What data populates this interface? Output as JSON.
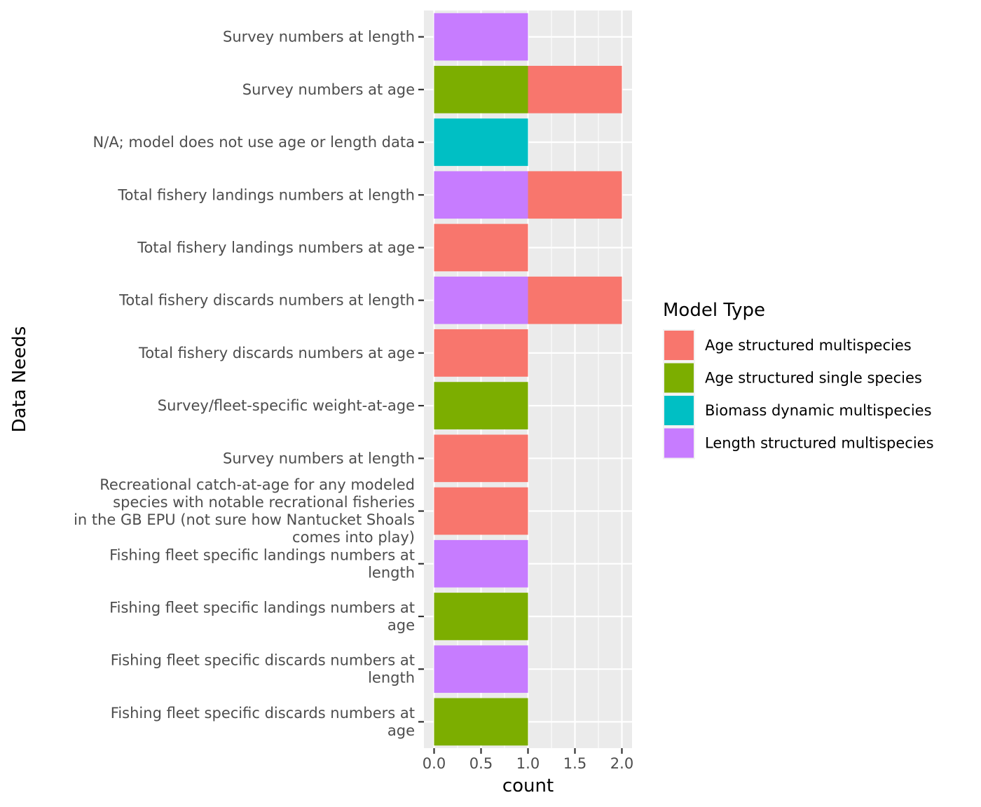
{
  "chart_data": {
    "type": "bar",
    "orientation": "horizontal",
    "stacked": true,
    "xlabel": "count",
    "ylabel": "Data Needs",
    "xlim": [
      0,
      2.1
    ],
    "xticks": [
      "0.0",
      "0.5",
      "1.0",
      "1.5",
      "2.0"
    ],
    "grid": true,
    "legend": {
      "title": "Model Type",
      "position": "right"
    },
    "series_info": [
      {
        "name": "Age structured multispecies",
        "color": "#F8766D"
      },
      {
        "name": "Age structured single species",
        "color": "#7CAE00"
      },
      {
        "name": "Biomass dynamic multispecies",
        "color": "#00BFC4"
      },
      {
        "name": "Length structured multispecies",
        "color": "#C77CFF"
      }
    ],
    "bars": [
      {
        "label": [
          "Survey numbers at length"
        ],
        "segments": [
          {
            "series": 3,
            "value": 1
          }
        ]
      },
      {
        "label": [
          "Survey numbers at age"
        ],
        "segments": [
          {
            "series": 1,
            "value": 1
          },
          {
            "series": 0,
            "value": 1
          }
        ]
      },
      {
        "label": [
          "N/A; model does not use age or length data"
        ],
        "segments": [
          {
            "series": 2,
            "value": 1
          }
        ]
      },
      {
        "label": [
          "Total fishery landings numbers at length"
        ],
        "segments": [
          {
            "series": 3,
            "value": 1
          },
          {
            "series": 0,
            "value": 1
          }
        ]
      },
      {
        "label": [
          "Total fishery landings numbers at age"
        ],
        "segments": [
          {
            "series": 0,
            "value": 1
          }
        ]
      },
      {
        "label": [
          "Total fishery discards numbers at length"
        ],
        "segments": [
          {
            "series": 3,
            "value": 1
          },
          {
            "series": 0,
            "value": 1
          }
        ]
      },
      {
        "label": [
          "Total fishery discards numbers at age"
        ],
        "segments": [
          {
            "series": 0,
            "value": 1
          }
        ]
      },
      {
        "label": [
          "Survey/fleet-specific weight-at-age"
        ],
        "segments": [
          {
            "series": 1,
            "value": 1
          }
        ]
      },
      {
        "label": [
          "Survey numbers at length"
        ],
        "segments": [
          {
            "series": 0,
            "value": 1
          }
        ]
      },
      {
        "label": [
          "Recreational catch-at-age for any modeled",
          "species with notable recrational fisheries",
          "in the GB EPU (not sure how Nantucket Shoals",
          "comes into play)"
        ],
        "segments": [
          {
            "series": 0,
            "value": 1
          }
        ]
      },
      {
        "label": [
          "Fishing fleet specific landings numbers at",
          "length"
        ],
        "segments": [
          {
            "series": 3,
            "value": 1
          }
        ]
      },
      {
        "label": [
          "Fishing fleet specific landings numbers at",
          "age"
        ],
        "segments": [
          {
            "series": 1,
            "value": 1
          }
        ]
      },
      {
        "label": [
          "Fishing fleet specific discards numbers at",
          "length"
        ],
        "segments": [
          {
            "series": 3,
            "value": 1
          }
        ]
      },
      {
        "label": [
          "Fishing fleet specific discards numbers at",
          "age"
        ],
        "segments": [
          {
            "series": 1,
            "value": 1
          }
        ]
      }
    ]
  }
}
